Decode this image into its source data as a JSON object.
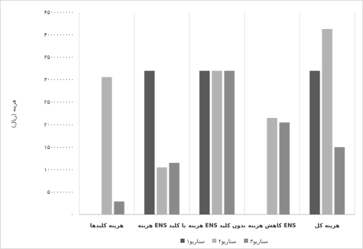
{
  "chart_data": {
    "type": "bar",
    "y_label": "هزینه (ریال)",
    "categories": [
      "هزینه کلیدها",
      "هزینه ENS با کلید",
      "هزینه ENS بدون کلید",
      "کاهش هزینه ENS",
      "هزینه کل"
    ],
    "series": [
      {
        "name": "سناریو۱",
        "color": "#5a5a5a",
        "values": [
          0,
          3200000000,
          3200000000,
          0,
          3200000000
        ]
      },
      {
        "name": "سناریو۲",
        "color": "#b3b3b3",
        "values": [
          3060000000,
          1050000000,
          3200000000,
          2150000000,
          4130000000
        ]
      },
      {
        "name": "سناریو۳",
        "color": "#8a8a8a",
        "values": [
          290000000,
          1150000000,
          3200000000,
          2050000000,
          1500000000
        ]
      }
    ],
    "ylim": [
      0,
      4500000000
    ],
    "yticks": [
      {
        "value": 0,
        "label": "۰"
      },
      {
        "value": 500000000,
        "label": "۵۰۰۰۰۰۰۰۰"
      },
      {
        "value": 1000000000,
        "label": "۱۰۰۰۰۰۰۰۰۰"
      },
      {
        "value": 1500000000,
        "label": "۱۵۰۰۰۰۰۰۰۰"
      },
      {
        "value": 2000000000,
        "label": "۲۰۰۰۰۰۰۰۰۰"
      },
      {
        "value": 2500000000,
        "label": "۲۵۰۰۰۰۰۰۰۰"
      },
      {
        "value": 3000000000,
        "label": "۳۰۰۰۰۰۰۰۰۰"
      },
      {
        "value": 3500000000,
        "label": "۳۵۰۰۰۰۰۰۰۰"
      },
      {
        "value": 4000000000,
        "label": "۴۰۰۰۰۰۰۰۰۰"
      },
      {
        "value": 4500000000,
        "label": "۴۵۰۰۰۰۰۰۰۰"
      }
    ],
    "grid": false
  }
}
